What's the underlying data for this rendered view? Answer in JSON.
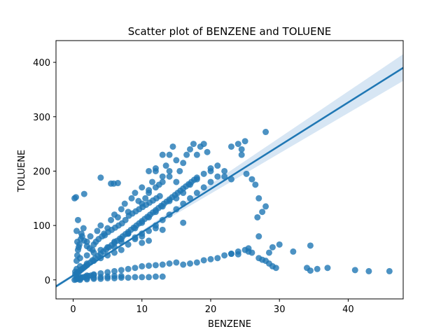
{
  "chart_data": {
    "type": "scatter",
    "title": "Scatter plot of BENZENE and TOLUENE",
    "xlabel": "BENZENE",
    "ylabel": "TOLUENE",
    "xlim": [
      -2.5,
      48
    ],
    "ylim": [
      -35,
      440
    ],
    "xticks": [
      0,
      10,
      20,
      30,
      40
    ],
    "yticks": [
      0,
      100,
      200,
      300,
      400
    ],
    "grid": false,
    "colors": {
      "points": "#1f77b4",
      "line": "#1f77b4",
      "band": "#c6dbef"
    },
    "regression": {
      "x": [
        -2.5,
        48
      ],
      "y": [
        -12,
        390
      ],
      "ci_upper_end": 415,
      "ci_lower_end": 366
    },
    "series": [
      {
        "points": [
          [
            0.2,
            150
          ],
          [
            0.4,
            152
          ],
          [
            1.6,
            158
          ],
          [
            4,
            188
          ],
          [
            5.5,
            177
          ],
          [
            5.9,
            177
          ],
          [
            6.5,
            178
          ],
          [
            0.7,
            110
          ],
          [
            0.5,
            90
          ],
          [
            0.6,
            70
          ],
          [
            0.8,
            60
          ],
          [
            1.2,
            85
          ],
          [
            1.5,
            95
          ],
          [
            2,
            70
          ],
          [
            2.5,
            80
          ],
          [
            3,
            65
          ],
          [
            3.5,
            90
          ],
          [
            4,
            100
          ],
          [
            4.5,
            85
          ],
          [
            5,
            95
          ],
          [
            5.5,
            110
          ],
          [
            6,
            120
          ],
          [
            6.5,
            115
          ],
          [
            7,
            130
          ],
          [
            7.5,
            140
          ],
          [
            8,
            125
          ],
          [
            8.5,
            150
          ],
          [
            9,
            160
          ],
          [
            9.5,
            145
          ],
          [
            10,
            170
          ],
          [
            10.5,
            150
          ],
          [
            11,
            165
          ],
          [
            11.5,
            180
          ],
          [
            12,
            200
          ],
          [
            12.5,
            175
          ],
          [
            13,
            190
          ],
          [
            13.5,
            210
          ],
          [
            14,
            230
          ],
          [
            14.5,
            245
          ],
          [
            15,
            220
          ],
          [
            15.5,
            200
          ],
          [
            16,
            215
          ],
          [
            16.5,
            230
          ],
          [
            17,
            240
          ],
          [
            17.5,
            250
          ],
          [
            18,
            230
          ],
          [
            18.5,
            245
          ],
          [
            19,
            250
          ],
          [
            19.5,
            235
          ],
          [
            20,
            200
          ],
          [
            21,
            210
          ],
          [
            22,
            200
          ],
          [
            23,
            245
          ],
          [
            24,
            250
          ],
          [
            24.5,
            240
          ],
          [
            25,
            255
          ],
          [
            25.2,
            195
          ],
          [
            24.5,
            230
          ],
          [
            26,
            185
          ],
          [
            26.5,
            175
          ],
          [
            28,
            272
          ],
          [
            27,
            150
          ],
          [
            26.8,
            115
          ],
          [
            27.5,
            125
          ],
          [
            28,
            135
          ],
          [
            23,
            185
          ],
          [
            22,
            190
          ],
          [
            21,
            190
          ],
          [
            20,
            180
          ],
          [
            19,
            170
          ],
          [
            18,
            160
          ],
          [
            17,
            150
          ],
          [
            16,
            140
          ],
          [
            15,
            130
          ],
          [
            14,
            120
          ],
          [
            13,
            110
          ],
          [
            12,
            100
          ],
          [
            11,
            90
          ],
          [
            10,
            85
          ],
          [
            9,
            75
          ],
          [
            8,
            65
          ],
          [
            7,
            55
          ],
          [
            6,
            50
          ],
          [
            5,
            45
          ],
          [
            4,
            40
          ],
          [
            3,
            35
          ],
          [
            2,
            30
          ],
          [
            1,
            25
          ],
          [
            0.5,
            20
          ],
          [
            0.3,
            15
          ],
          [
            1,
            40
          ],
          [
            2,
            45
          ],
          [
            3,
            50
          ],
          [
            4,
            55
          ],
          [
            5,
            60
          ],
          [
            6,
            70
          ],
          [
            7,
            75
          ],
          [
            8,
            85
          ],
          [
            9,
            95
          ],
          [
            10,
            105
          ],
          [
            11,
            115
          ],
          [
            12,
            125
          ],
          [
            13,
            135
          ],
          [
            14,
            145
          ],
          [
            15,
            150
          ],
          [
            16,
            160
          ],
          [
            17,
            175
          ],
          [
            18,
            185
          ],
          [
            19,
            195
          ],
          [
            20,
            205
          ],
          [
            10,
            140
          ],
          [
            11,
            160
          ],
          [
            12,
            170
          ],
          [
            13,
            180
          ],
          [
            14,
            190
          ],
          [
            11,
            200
          ],
          [
            12,
            205
          ],
          [
            13,
            230
          ],
          [
            14,
            200
          ],
          [
            15,
            180
          ],
          [
            16,
            105
          ],
          [
            12,
            95
          ],
          [
            13,
            92
          ],
          [
            10,
            80
          ],
          [
            9,
            78
          ],
          [
            8,
            85
          ],
          [
            7,
            70
          ],
          [
            6,
            60
          ],
          [
            11,
            72
          ],
          [
            10,
            68
          ],
          [
            0.5,
            5
          ],
          [
            1,
            5
          ],
          [
            2,
            8
          ],
          [
            3,
            10
          ],
          [
            4,
            12
          ],
          [
            5,
            14
          ],
          [
            6,
            16
          ],
          [
            7,
            18
          ],
          [
            8,
            20
          ],
          [
            9,
            22
          ],
          [
            10,
            25
          ],
          [
            11,
            26
          ],
          [
            12,
            27
          ],
          [
            13,
            28
          ],
          [
            14,
            30
          ],
          [
            15,
            32
          ],
          [
            16,
            28
          ],
          [
            17,
            30
          ],
          [
            18,
            32
          ],
          [
            19,
            36
          ],
          [
            20,
            38
          ],
          [
            21,
            40
          ],
          [
            22,
            45
          ],
          [
            23,
            48
          ],
          [
            24,
            52
          ],
          [
            25,
            55
          ],
          [
            25.5,
            58
          ],
          [
            26,
            50
          ],
          [
            27,
            40
          ],
          [
            28,
            35
          ],
          [
            28.5,
            30
          ],
          [
            29,
            25
          ],
          [
            29.5,
            22
          ],
          [
            30,
            65
          ],
          [
            29,
            60
          ],
          [
            28.5,
            50
          ],
          [
            27,
            80
          ],
          [
            32,
            52
          ],
          [
            34.5,
            63
          ],
          [
            34,
            22
          ],
          [
            34.5,
            17
          ],
          [
            35.5,
            20
          ],
          [
            37,
            22
          ],
          [
            41,
            18
          ],
          [
            43,
            16
          ],
          [
            46,
            16
          ],
          [
            27.5,
            37
          ],
          [
            25.5,
            52
          ],
          [
            24,
            47
          ],
          [
            23,
            48
          ],
          [
            1,
            0
          ],
          [
            2,
            1
          ],
          [
            3,
            2
          ],
          [
            4,
            2
          ],
          [
            5,
            3
          ],
          [
            6,
            3
          ],
          [
            7,
            4
          ],
          [
            8,
            4
          ],
          [
            9,
            5
          ],
          [
            10,
            5
          ],
          [
            11,
            5
          ],
          [
            12,
            6
          ],
          [
            13,
            6
          ],
          [
            1,
            2
          ],
          [
            2,
            3
          ],
          [
            3,
            4
          ],
          [
            4,
            5
          ],
          [
            5,
            6
          ],
          [
            6,
            7
          ],
          [
            7,
            7
          ],
          [
            0.2,
            0
          ],
          [
            0.4,
            1
          ],
          [
            0.6,
            2
          ],
          [
            0.8,
            3
          ],
          [
            1.2,
            4
          ],
          [
            1.5,
            5
          ],
          [
            1.8,
            6
          ],
          [
            2.2,
            7
          ],
          [
            2.6,
            8
          ],
          [
            3,
            9
          ],
          [
            0.3,
            10
          ],
          [
            0.5,
            12
          ],
          [
            0.7,
            14
          ],
          [
            0.9,
            16
          ],
          [
            1.1,
            18
          ],
          [
            1.3,
            20
          ],
          [
            1.5,
            22
          ],
          [
            1.7,
            24
          ],
          [
            1.9,
            26
          ],
          [
            2.1,
            28
          ],
          [
            2.5,
            32
          ],
          [
            2.8,
            36
          ],
          [
            3.2,
            40
          ],
          [
            3.6,
            44
          ],
          [
            4,
            48
          ],
          [
            4.4,
            52
          ],
          [
            4.8,
            56
          ],
          [
            5.2,
            60
          ],
          [
            5.6,
            64
          ],
          [
            6,
            68
          ],
          [
            6.4,
            72
          ],
          [
            6.8,
            76
          ],
          [
            7.2,
            80
          ],
          [
            7.6,
            84
          ],
          [
            8,
            88
          ],
          [
            8.4,
            92
          ],
          [
            8.8,
            96
          ],
          [
            9.2,
            100
          ],
          [
            9.6,
            104
          ],
          [
            10,
            108
          ],
          [
            10.4,
            112
          ],
          [
            10.8,
            116
          ],
          [
            11.2,
            120
          ],
          [
            11.6,
            124
          ],
          [
            12,
            128
          ],
          [
            12.4,
            132
          ],
          [
            12.8,
            136
          ],
          [
            13.2,
            140
          ],
          [
            13.6,
            144
          ],
          [
            14,
            148
          ],
          [
            14.4,
            152
          ],
          [
            14.8,
            156
          ],
          [
            15.2,
            160
          ],
          [
            15.6,
            164
          ],
          [
            16,
            168
          ],
          [
            16.4,
            172
          ],
          [
            16.8,
            176
          ],
          [
            17.2,
            180
          ],
          [
            17.6,
            184
          ],
          [
            18,
            188
          ],
          [
            0.5,
            35
          ],
          [
            0.6,
            45
          ],
          [
            0.7,
            55
          ],
          [
            0.9,
            65
          ],
          [
            1.1,
            75
          ],
          [
            1.3,
            80
          ],
          [
            1.6,
            72
          ],
          [
            2,
            62
          ],
          [
            2.4,
            58
          ],
          [
            2.8,
            55
          ],
          [
            3.3,
            70
          ],
          [
            3.7,
            75
          ],
          [
            4.2,
            80
          ],
          [
            4.6,
            82
          ],
          [
            5.1,
            88
          ],
          [
            5.6,
            92
          ],
          [
            6.1,
            96
          ],
          [
            6.6,
            100
          ],
          [
            7.1,
            104
          ],
          [
            7.6,
            110
          ],
          [
            8.1,
            118
          ],
          [
            8.6,
            122
          ],
          [
            9.1,
            126
          ],
          [
            9.6,
            130
          ],
          [
            10.1,
            134
          ],
          [
            10.6,
            138
          ],
          [
            11.1,
            142
          ],
          [
            11.6,
            146
          ],
          [
            12.1,
            150
          ],
          [
            12.6,
            154
          ]
        ]
      }
    ]
  }
}
